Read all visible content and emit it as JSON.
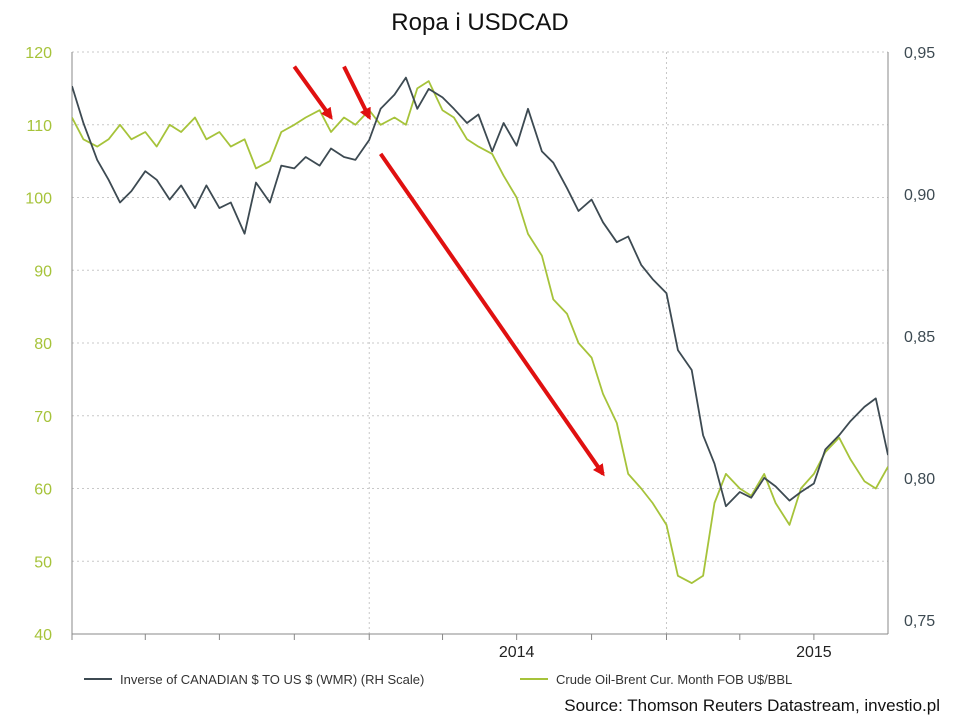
{
  "chart_data": {
    "type": "line",
    "title": "Ropa i USDCAD",
    "source_label": "Source: Thomson Reuters Datastream, investio.pl",
    "x_ticks": [
      "2014",
      "2015"
    ],
    "y_left": {
      "ticks": [
        40,
        50,
        60,
        70,
        80,
        90,
        100,
        110,
        120
      ],
      "range": [
        40,
        120
      ],
      "color": "#a6c33a"
    },
    "y_right": {
      "ticks": [
        "0,75",
        "0,80",
        "0,85",
        "0,90",
        "0,95"
      ],
      "tick_values": [
        0.75,
        0.8,
        0.85,
        0.9,
        0.95
      ],
      "range": [
        0.745,
        0.95
      ],
      "color": "#3d4a52"
    },
    "x_range": [
      "2013-01-01",
      "2015-09-30"
    ],
    "grid": true,
    "legend_position": "bottom",
    "series": [
      {
        "name": "Inverse of CANADIAN $ TO US $ (WMR) (RH Scale)",
        "axis": "right",
        "color": "#3d4a52",
        "x": [
          "2013-01-01",
          "2013-01-15",
          "2013-02-01",
          "2013-02-15",
          "2013-03-01",
          "2013-03-15",
          "2013-04-01",
          "2013-04-15",
          "2013-05-01",
          "2013-05-15",
          "2013-06-01",
          "2013-06-15",
          "2013-07-01",
          "2013-07-15",
          "2013-08-01",
          "2013-08-15",
          "2013-09-01",
          "2013-09-15",
          "2013-10-01",
          "2013-10-15",
          "2013-11-01",
          "2013-11-15",
          "2013-12-01",
          "2013-12-15",
          "2014-01-01",
          "2014-01-15",
          "2014-02-01",
          "2014-02-15",
          "2014-03-01",
          "2014-03-15",
          "2014-04-01",
          "2014-04-15",
          "2014-05-01",
          "2014-05-15",
          "2014-06-01",
          "2014-06-15",
          "2014-07-01",
          "2014-07-15",
          "2014-08-01",
          "2014-08-15",
          "2014-09-01",
          "2014-09-15",
          "2014-10-01",
          "2014-10-15",
          "2014-11-01",
          "2014-11-15",
          "2014-12-01",
          "2014-12-15",
          "2015-01-01",
          "2015-01-15",
          "2015-02-01",
          "2015-02-15",
          "2015-03-01",
          "2015-03-15",
          "2015-04-01",
          "2015-04-15",
          "2015-05-01",
          "2015-05-15",
          "2015-06-01",
          "2015-06-15",
          "2015-07-01",
          "2015-07-15",
          "2015-08-01",
          "2015-08-15",
          "2015-09-01",
          "2015-09-15",
          "2015-09-30"
        ],
        "values": [
          0.938,
          0.925,
          0.912,
          0.905,
          0.897,
          0.901,
          0.908,
          0.905,
          0.898,
          0.903,
          0.895,
          0.903,
          0.895,
          0.897,
          0.886,
          0.904,
          0.897,
          0.91,
          0.909,
          0.913,
          0.91,
          0.916,
          0.913,
          0.912,
          0.919,
          0.93,
          0.935,
          0.941,
          0.93,
          0.937,
          0.934,
          0.93,
          0.925,
          0.928,
          0.915,
          0.925,
          0.917,
          0.93,
          0.915,
          0.911,
          0.902,
          0.894,
          0.898,
          0.89,
          0.883,
          0.885,
          0.875,
          0.87,
          0.865,
          0.845,
          0.838,
          0.815,
          0.805,
          0.79,
          0.795,
          0.793,
          0.8,
          0.797,
          0.792,
          0.795,
          0.798,
          0.81,
          0.815,
          0.82,
          0.825,
          0.828,
          0.808
        ]
      },
      {
        "name": "Crude Oil-Brent Cur. Month FOB U$/BBL",
        "axis": "left",
        "color": "#a6c33a",
        "x": [
          "2013-01-01",
          "2013-01-15",
          "2013-02-01",
          "2013-02-15",
          "2013-03-01",
          "2013-03-15",
          "2013-04-01",
          "2013-04-15",
          "2013-05-01",
          "2013-05-15",
          "2013-06-01",
          "2013-06-15",
          "2013-07-01",
          "2013-07-15",
          "2013-08-01",
          "2013-08-15",
          "2013-09-01",
          "2013-09-15",
          "2013-10-01",
          "2013-10-15",
          "2013-11-01",
          "2013-11-15",
          "2013-12-01",
          "2013-12-15",
          "2014-01-01",
          "2014-01-15",
          "2014-02-01",
          "2014-02-15",
          "2014-03-01",
          "2014-03-15",
          "2014-04-01",
          "2014-04-15",
          "2014-05-01",
          "2014-05-15",
          "2014-06-01",
          "2014-06-15",
          "2014-07-01",
          "2014-07-15",
          "2014-08-01",
          "2014-08-15",
          "2014-09-01",
          "2014-09-15",
          "2014-10-01",
          "2014-10-15",
          "2014-11-01",
          "2014-11-15",
          "2014-12-01",
          "2014-12-15",
          "2015-01-01",
          "2015-01-15",
          "2015-02-01",
          "2015-02-15",
          "2015-03-01",
          "2015-03-15",
          "2015-04-01",
          "2015-04-15",
          "2015-05-01",
          "2015-05-15",
          "2015-06-01",
          "2015-06-15",
          "2015-07-01",
          "2015-07-15",
          "2015-08-01",
          "2015-08-15",
          "2015-09-01",
          "2015-09-15",
          "2015-09-30"
        ],
        "values": [
          111,
          108,
          107,
          108,
          110,
          108,
          109,
          107,
          110,
          109,
          111,
          108,
          109,
          107,
          108,
          104,
          105,
          109,
          110,
          111,
          112,
          109,
          111,
          110,
          112,
          110,
          111,
          110,
          115,
          116,
          112,
          111,
          108,
          107,
          106,
          103,
          100,
          95,
          92,
          86,
          84,
          80,
          78,
          73,
          69,
          62,
          60,
          58,
          55,
          48,
          47,
          48,
          58,
          62,
          60,
          59,
          62,
          58,
          55,
          60,
          62,
          65,
          67,
          64,
          61,
          60,
          63
        ]
      }
    ]
  },
  "annotations": {
    "arrows": [
      {
        "label": "peak-arrow-1"
      },
      {
        "label": "peak-arrow-2"
      },
      {
        "label": "trend-arrow"
      }
    ],
    "arrow_color": "#e01010"
  }
}
